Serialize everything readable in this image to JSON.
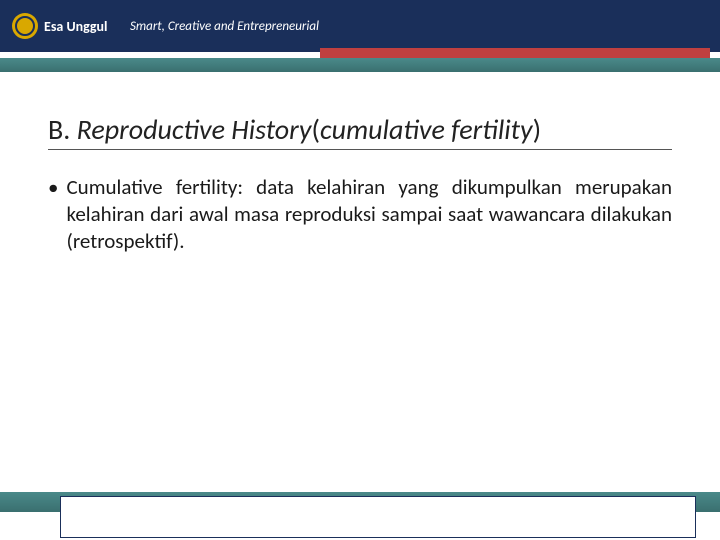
{
  "header": {
    "logo_name": "Esa Unggul",
    "tagline": "Smart, Creative and Entrepreneurial"
  },
  "slide": {
    "title_prefix": "B. ",
    "title_italic": "Reproductive History",
    "title_paren_open": "(",
    "title_paren_inner": "cumulative fertility",
    "title_paren_close": ")",
    "bullet_text": "Cumulative fertility: data kelahiran yang dikumpulkan merupakan kelahiran dari awal masa reproduksi sampai saat wawancara dilakukan (retrospektif)."
  },
  "colors": {
    "header_bg": "#1a2f5a",
    "accent_red": "#c04040",
    "teal": "#3a6f6f",
    "logo_gold": "#d9a800"
  }
}
